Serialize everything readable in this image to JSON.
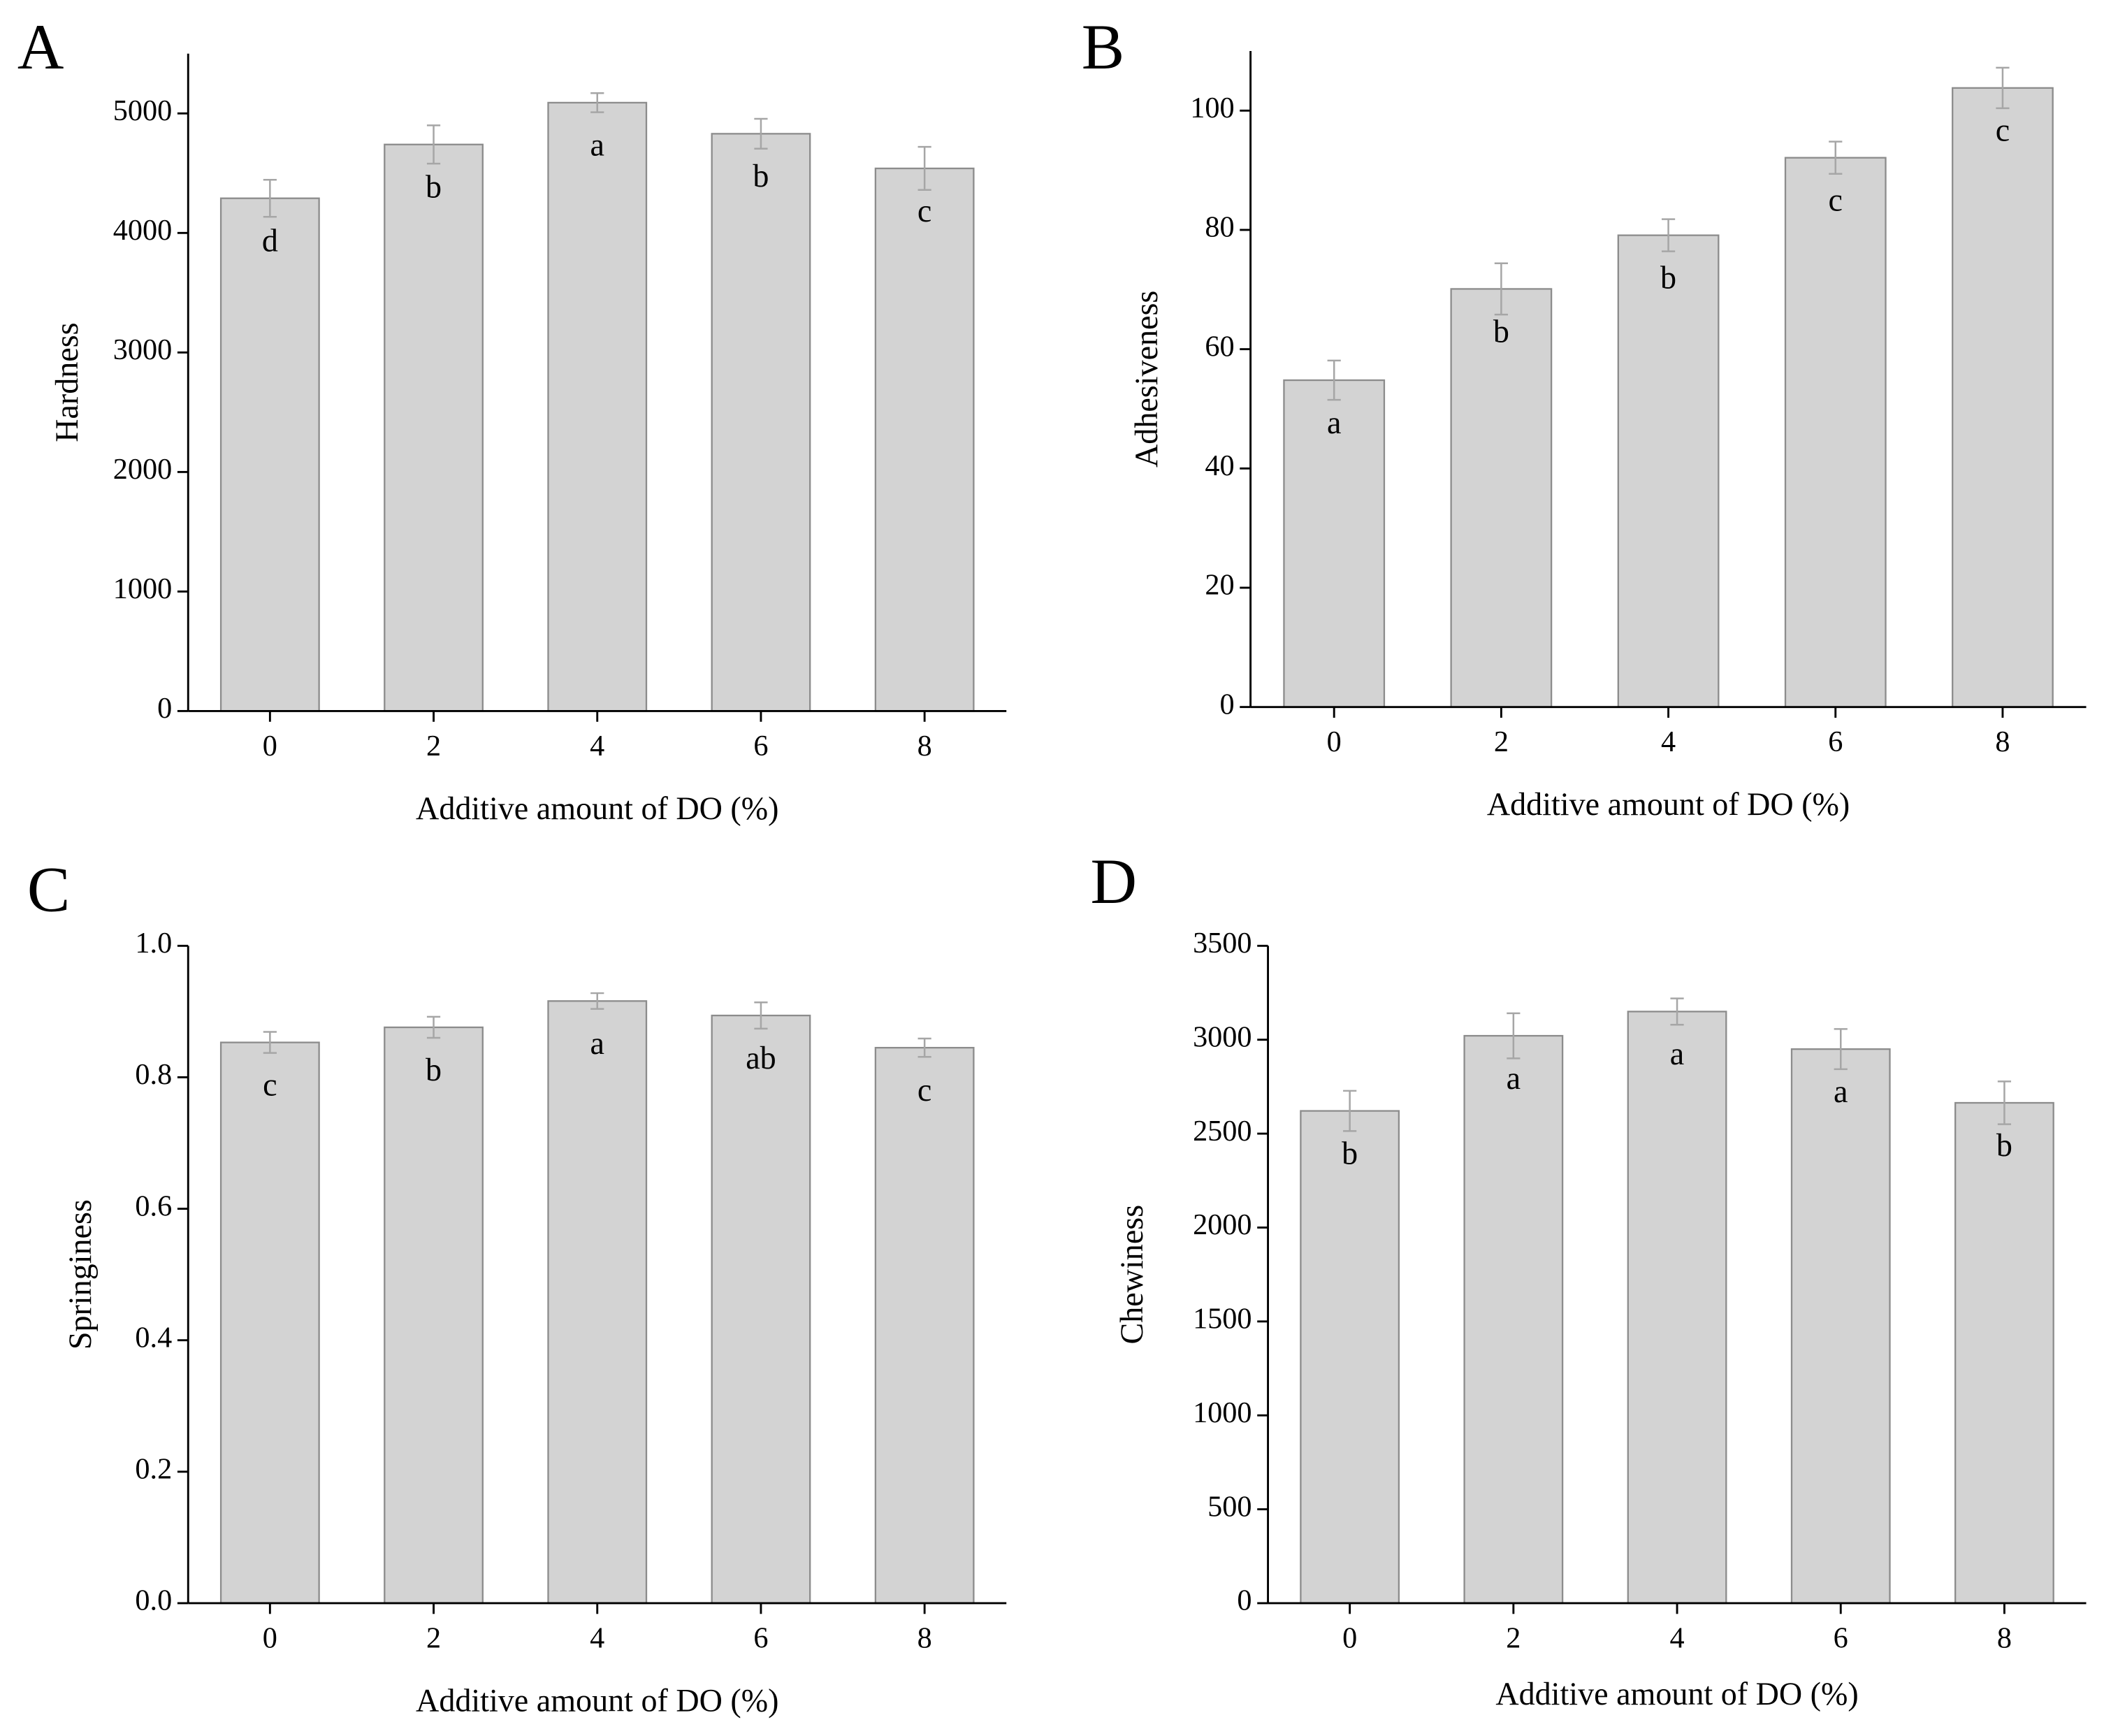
{
  "chart_data": [
    {
      "type": "bar",
      "panel": "A",
      "ylabel": "Hardness",
      "xlabel": "Additive amount of DO (%)",
      "categories": [
        "0",
        "2",
        "4",
        "6",
        "8"
      ],
      "values": [
        4290,
        4740,
        5090,
        4830,
        4540
      ],
      "errors": [
        155,
        160,
        80,
        125,
        180
      ],
      "annotations": [
        "d",
        "b",
        "a",
        "b",
        "c"
      ],
      "ylim": [
        0,
        5500
      ],
      "yticks": [
        0,
        1000,
        2000,
        3000,
        4000,
        5000
      ],
      "color": "#d3d3d3",
      "edgecolor": "#8c8c8c",
      "errorcolor": "#a6a6a6"
    },
    {
      "type": "bar",
      "panel": "B",
      "ylabel": "Adhesiveness",
      "xlabel": "Additive amount of DO (%)",
      "categories": [
        "0",
        "2",
        "4",
        "6",
        "8"
      ],
      "values": [
        54.8,
        70.1,
        79.1,
        92.1,
        103.8
      ],
      "errors": [
        3.3,
        4.3,
        2.7,
        2.7,
        3.4
      ],
      "annotations": [
        "a",
        "b",
        "b",
        "c",
        "c"
      ],
      "ylim": [
        0,
        110
      ],
      "yticks": [
        0,
        20,
        40,
        60,
        80,
        100
      ],
      "color": "#d3d3d3",
      "edgecolor": "#8c8c8c",
      "errorcolor": "#a6a6a6"
    },
    {
      "type": "bar",
      "panel": "C",
      "ylabel": "Springiness",
      "xlabel": "Additive amount of DO (%)",
      "categories": [
        "0",
        "2",
        "4",
        "6",
        "8"
      ],
      "values": [
        0.853,
        0.876,
        0.916,
        0.894,
        0.845
      ],
      "errors": [
        0.016,
        0.016,
        0.012,
        0.02,
        0.014
      ],
      "annotations": [
        "c",
        "b",
        "a",
        "ab",
        "c"
      ],
      "ylim": [
        0,
        1.0
      ],
      "yticks": [
        {
          "value": 0,
          "label": "0.0"
        },
        0.2,
        0.4,
        0.6,
        0.8,
        {
          "value": 1.0,
          "label": "1.0"
        }
      ],
      "color": "#d3d3d3",
      "edgecolor": "#8c8c8c",
      "errorcolor": "#a6a6a6"
    },
    {
      "type": "bar",
      "panel": "D",
      "ylabel": "Chewiness",
      "xlabel": "Additive amount of DO (%)",
      "categories": [
        "0",
        "2",
        "4",
        "6",
        "8"
      ],
      "values": [
        2621,
        3021,
        3150,
        2950,
        2664
      ],
      "errors": [
        107,
        120,
        70,
        107,
        114
      ],
      "annotations": [
        "b",
        "a",
        "a",
        "a",
        "b"
      ],
      "ylim": [
        0,
        3500
      ],
      "yticks": [
        0,
        500,
        1000,
        1500,
        2000,
        2500,
        3000,
        3500
      ],
      "color": "#d3d3d3",
      "edgecolor": "#8c8c8c",
      "errorcolor": "#a6a6a6"
    }
  ]
}
